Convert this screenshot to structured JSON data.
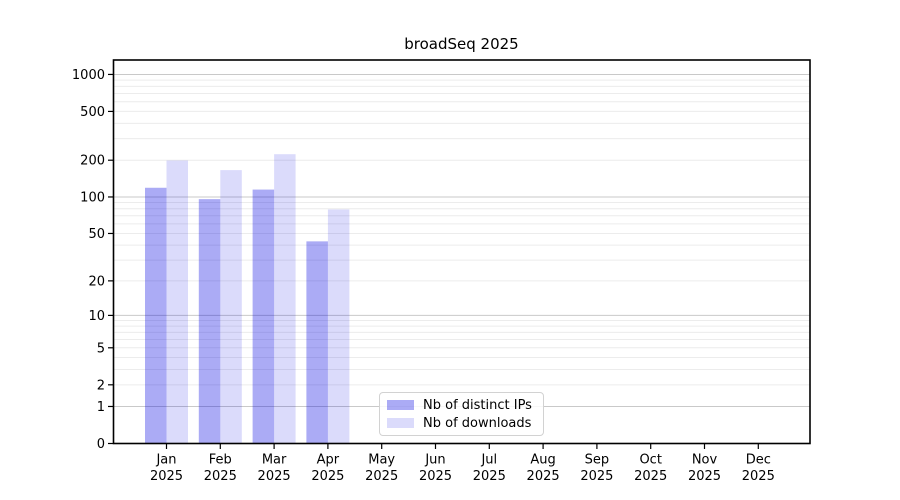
{
  "chart_data": {
    "type": "bar",
    "title": "broadSeq 2025",
    "xlabel": "",
    "ylabel": "",
    "categories": [
      "Jan 2025",
      "Feb 2025",
      "Mar 2025",
      "Apr 2025",
      "May 2025",
      "Jun 2025",
      "Jul 2025",
      "Aug 2025",
      "Sep 2025",
      "Oct 2025",
      "Nov 2025",
      "Dec 2025"
    ],
    "series": [
      {
        "name": "Nb of distinct IPs",
        "color": "#0000E0",
        "alpha": 0.33,
        "values": [
          119,
          96,
          115,
          43,
          null,
          null,
          null,
          null,
          null,
          null,
          null,
          null
        ]
      },
      {
        "name": "Nb of downloads",
        "color": "#0000E0",
        "alpha": 0.14,
        "values": [
          199,
          166,
          224,
          79,
          null,
          null,
          null,
          null,
          null,
          null,
          null,
          null
        ]
      }
    ],
    "y_scale": "log1p",
    "ylim": [
      0,
      1300
    ],
    "y_ticks": [
      1000,
      500,
      200,
      100,
      50,
      20,
      10,
      5,
      2,
      1,
      0
    ],
    "gridlines": {
      "major": [
        1,
        10,
        100,
        1000
      ],
      "minor": [
        2,
        3,
        4,
        5,
        6,
        7,
        8,
        9,
        20,
        30,
        40,
        50,
        60,
        70,
        80,
        90,
        200,
        300,
        400,
        500,
        600,
        700,
        800,
        900
      ]
    },
    "grid": true,
    "legend_position": "lower center-right"
  },
  "colors": {
    "grid_major": "#c9c9c9",
    "grid_minor": "#ececec",
    "axis": "#000000",
    "text": "#000000",
    "legend_border": "#d2d2d2"
  }
}
